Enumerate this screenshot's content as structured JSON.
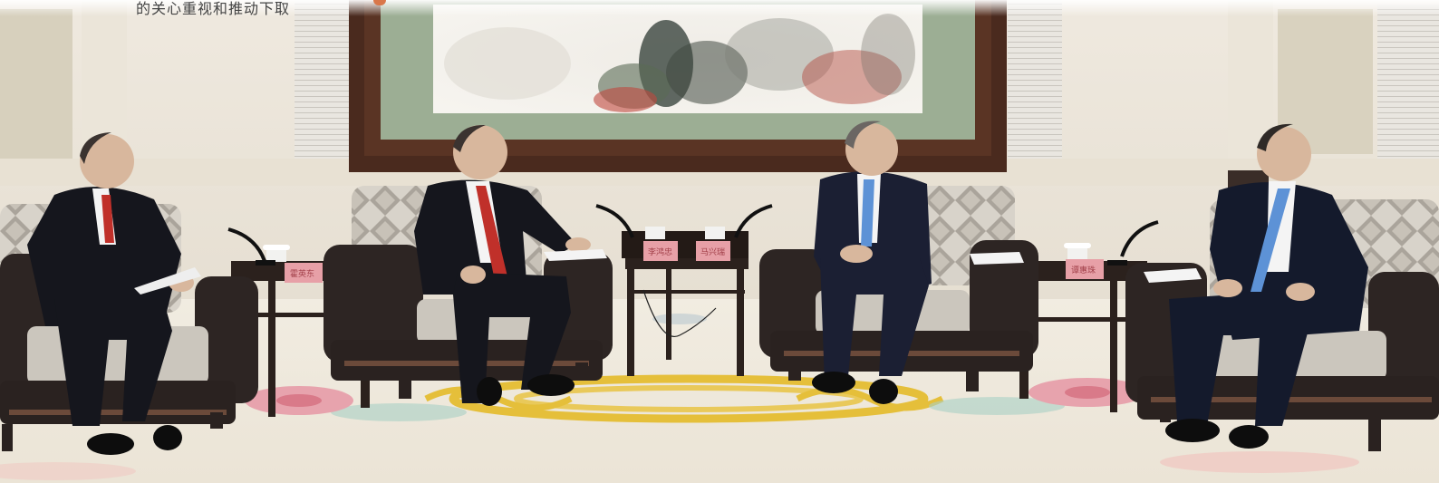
{
  "photo": {
    "caption_fragment": "的关心重视和推动下取",
    "nameplates": [
      "霍英东",
      "李鸿忠",
      "马兴瑞",
      "谭惠珠"
    ],
    "colors": {
      "wall": "#ece7dc",
      "carpet": "#f2ede2",
      "frame": "#4a2a1e",
      "mat": "#9cae94",
      "sofa_leather": "#2d2523",
      "sofa_fabric": "#cbc6bd",
      "suit": "#15161d",
      "tie_red": "#c0302a",
      "tie_blue": "#5d92d6",
      "nameplate": "#e7a0a7",
      "carpet_gold": "#e5bf3a",
      "carpet_pink": "#e7a3ad"
    }
  }
}
